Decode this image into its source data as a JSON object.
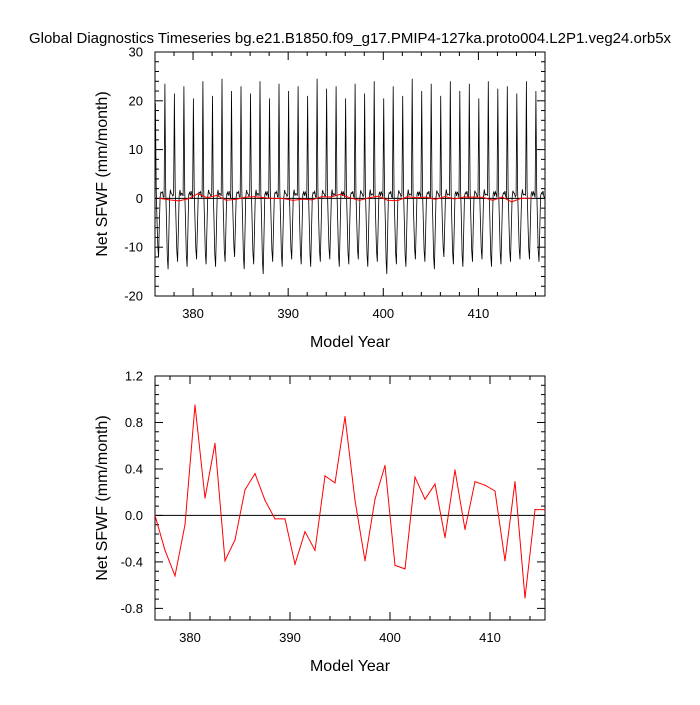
{
  "figure": {
    "title": "Global Diagnostics Timeseries bg.e21.B1850.f09_g17.PMIP4-127ka.proto004.L2P1.veg24.orb5x"
  },
  "colors": {
    "monthly_line": "#000000",
    "annual_line": "#ff0000",
    "zero_line": "#000000"
  },
  "chart_data": [
    {
      "type": "line",
      "title": "",
      "xlabel": "Model Year",
      "ylabel": "Net SFWF (mm/month)",
      "xlim": [
        376,
        417
      ],
      "ylim": [
        -20,
        30
      ],
      "xticks": [
        380,
        390,
        400,
        410
      ],
      "xtick_labels": [
        "380",
        "390",
        "400",
        "410"
      ],
      "yticks": [
        -20,
        -10,
        0,
        10,
        20,
        30
      ],
      "ytick_labels": [
        "-20",
        "-10",
        "0",
        "10",
        "20",
        "30"
      ],
      "reference_line": 0,
      "grid": false,
      "series": [
        {
          "style": "monthly",
          "color": "#000000",
          "start_year": 376.04,
          "step_years": 0.0833333,
          "seasonal_cycle": [
            19.2,
            1.8,
            -4.5,
            -11.0,
            -13.5,
            -6.5,
            0.5,
            1.5,
            0.8,
            1.2,
            0.6,
            0.4
          ],
          "year_peaks": [
            19.5,
            23.5,
            21.5,
            23.0,
            20.5,
            24.0,
            21.0,
            24.5,
            22.0,
            23.0,
            21.5,
            24.0,
            20.5,
            23.5,
            22.0,
            23.0,
            21.0,
            24.5,
            22.5,
            23.0,
            20.5,
            23.5,
            21.5,
            24.0,
            20.5,
            23.0,
            21.0,
            24.5,
            22.0,
            23.5,
            21.0,
            24.0,
            22.0,
            23.5,
            20.5,
            24.0,
            22.5,
            23.0,
            21.5,
            24.0,
            22.0
          ],
          "year_troughs": [
            -12.0,
            -14.5,
            -13.0,
            -14.0,
            -12.5,
            -13.5,
            -14.0,
            -13.0,
            -12.0,
            -14.5,
            -13.5,
            -15.5,
            -13.0,
            -14.0,
            -12.5,
            -13.5,
            -14.0,
            -13.0,
            -12.5,
            -14.0,
            -13.5,
            -12.5,
            -14.0,
            -13.0,
            -15.5,
            -13.5,
            -14.0,
            -12.5,
            -13.0,
            -14.5,
            -12.0,
            -13.5,
            -14.0,
            -13.0,
            -12.5,
            -14.0,
            -13.5,
            -13.0,
            -12.5,
            -12.5,
            -13.0
          ]
        },
        {
          "style": "annual",
          "color": "#ff0000",
          "x": [
            376.5,
            377.5,
            378.5,
            379.5,
            380.5,
            381.5,
            382.5,
            383.5,
            384.5,
            385.5,
            386.5,
            387.5,
            388.5,
            389.5,
            390.5,
            391.5,
            392.5,
            393.5,
            394.5,
            395.5,
            396.5,
            397.5,
            398.5,
            399.5,
            400.5,
            401.5,
            402.5,
            403.5,
            404.5,
            405.5,
            406.5,
            407.5,
            408.5,
            409.5,
            410.5,
            411.5,
            412.5,
            413.5,
            414.5,
            415.5
          ],
          "values": [
            0.0,
            -0.3,
            -0.52,
            -0.08,
            0.95,
            0.15,
            0.62,
            -0.39,
            -0.21,
            0.22,
            0.36,
            0.13,
            -0.03,
            -0.03,
            -0.42,
            -0.14,
            -0.3,
            0.34,
            0.28,
            0.85,
            0.13,
            -0.39,
            0.14,
            0.43,
            -0.43,
            -0.46,
            0.33,
            0.14,
            0.27,
            -0.19,
            0.39,
            -0.12,
            0.29,
            0.26,
            0.21,
            -0.39,
            0.29,
            -0.71,
            0.05,
            0.05
          ]
        }
      ]
    },
    {
      "type": "line",
      "title": "",
      "xlabel": "Model Year",
      "ylabel": "Net SFWF (mm/month)",
      "xlim": [
        376.5,
        415.5
      ],
      "ylim": [
        -0.9,
        1.2
      ],
      "xticks": [
        380,
        390,
        400,
        410
      ],
      "xtick_labels": [
        "380",
        "390",
        "400",
        "410"
      ],
      "yticks": [
        -0.8,
        -0.4,
        0.0,
        0.4,
        0.8,
        1.2
      ],
      "ytick_labels": [
        "-0.8",
        "-0.4",
        "0.0",
        "0.4",
        "0.8",
        "1.2"
      ],
      "reference_line": 0,
      "grid": false,
      "series": [
        {
          "style": "annual",
          "color": "#ff0000",
          "x": [
            376.5,
            377.5,
            378.5,
            379.5,
            380.5,
            381.5,
            382.5,
            383.5,
            384.5,
            385.5,
            386.5,
            387.5,
            388.5,
            389.5,
            390.5,
            391.5,
            392.5,
            393.5,
            394.5,
            395.5,
            396.5,
            397.5,
            398.5,
            399.5,
            400.5,
            401.5,
            402.5,
            403.5,
            404.5,
            405.5,
            406.5,
            407.5,
            408.5,
            409.5,
            410.5,
            411.5,
            412.5,
            413.5,
            414.5,
            415.5
          ],
          "values": [
            0.0,
            -0.3,
            -0.52,
            -0.08,
            0.95,
            0.15,
            0.62,
            -0.39,
            -0.21,
            0.22,
            0.36,
            0.13,
            -0.03,
            -0.03,
            -0.42,
            -0.14,
            -0.3,
            0.34,
            0.28,
            0.85,
            0.13,
            -0.39,
            0.14,
            0.43,
            -0.43,
            -0.46,
            0.33,
            0.14,
            0.27,
            -0.19,
            0.39,
            -0.12,
            0.29,
            0.26,
            0.21,
            -0.39,
            0.29,
            -0.71,
            0.05,
            0.05
          ]
        }
      ]
    }
  ]
}
